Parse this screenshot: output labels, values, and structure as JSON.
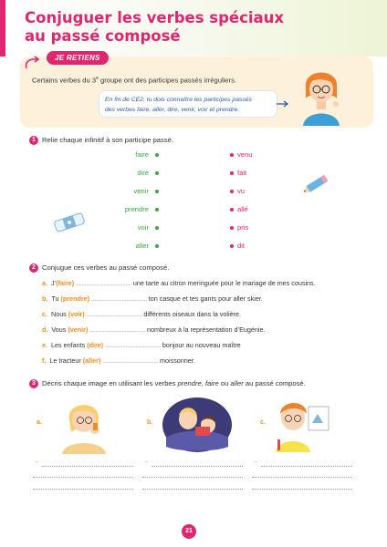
{
  "title": {
    "line1": "Conjuguer les verbes spéciaux",
    "line2": "au passé composé"
  },
  "retiens": {
    "badge": "JE RETIENS",
    "text_main": "Certains verbes du 3",
    "text_sup": "e",
    "text_rest": " groupe ont des participes passés irréguliers.",
    "bubble_line1": "En fin de CE2, tu dois connaître les participes passés",
    "bubble_line2": "des verbes faire, aller, dire, venir, voir et prendre."
  },
  "exercise1": {
    "number": "1",
    "instruction": "Relie chaque infinitif à son participe passé.",
    "infinitives": [
      "faire",
      "dire",
      "venir",
      "prendre",
      "voir",
      "aller"
    ],
    "participles": [
      "venu",
      "fait",
      "vu",
      "allé",
      "pris",
      "dit"
    ]
  },
  "exercise2": {
    "number": "2",
    "instruction": "Conjugue ces verbes au passé composé.",
    "sentences": [
      {
        "letter": "a.",
        "start": "J’",
        "verb": "(faire)",
        "dots": "......................................",
        "end": " une tarte au citron meringuée pour le mariage de mes cousins."
      },
      {
        "letter": "b.",
        "start": "Tu ",
        "verb": "(prendre)",
        "dots": "......................................",
        "end": " ton casque et tes gants pour aller skier."
      },
      {
        "letter": "c.",
        "start": "Nous ",
        "verb": "(voir)",
        "dots": "......................................",
        "end": " différents oiseaux dans la volière."
      },
      {
        "letter": "d.",
        "start": "Vous ",
        "verb": "(venir)",
        "dots": "......................................",
        "end": " nombreux à la représentation d’Eugénie."
      },
      {
        "letter": "e.",
        "start": "Les enfants ",
        "verb": "(dire)",
        "dots": "......................................",
        "end": " bonjour au nouveau maître"
      },
      {
        "letter": "f.",
        "start": "Le tracteur ",
        "verb": "(aller)",
        "dots": "......................................",
        "end": " moissonner."
      }
    ]
  },
  "exercise3": {
    "number": "3",
    "instruction_start": "Décris chaque image en utilisant les verbes ",
    "instruction_verbs": "prendre, faire",
    "instruction_mid": " ou ",
    "instruction_verb2": "aller",
    "instruction_end": " au passé composé.",
    "labels": [
      "a.",
      "b.",
      "c."
    ],
    "arrow": "→"
  },
  "page_number": "21",
  "colors": {
    "accent": "#e0266f",
    "orange": "#f08c1e",
    "green": "#3aa845",
    "retiens_bg": "#fdf1dc"
  },
  "icons": [
    "pencil-icon",
    "eraser-icon",
    "girl-illustration"
  ]
}
